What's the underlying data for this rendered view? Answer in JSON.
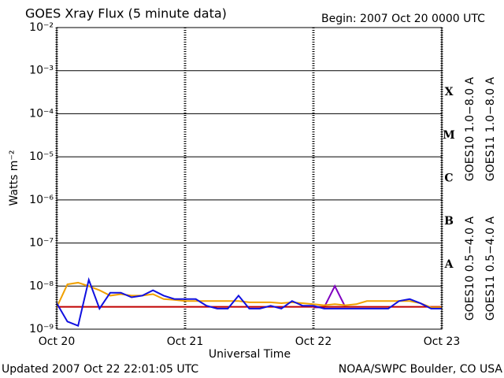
{
  "chart_data": {
    "type": "line",
    "title": "GOES Xray Flux (5 minute data)",
    "subtitle": "Begin:  2007 Oct 20 0000 UTC",
    "x_label": "Universal Time",
    "y_label": "Watts m⁻²",
    "footer_left": "Updated 2007 Oct 22 22:01:05 UTC",
    "footer_right": "NOAA/SWPC Boulder, CO USA",
    "log_scale": true,
    "grid": true,
    "xlim": [
      0,
      72
    ],
    "xticks": [
      {
        "value": 0,
        "label": "Oct 20"
      },
      {
        "value": 24,
        "label": "Oct 21"
      },
      {
        "value": 48,
        "label": "Oct 22"
      },
      {
        "value": 72,
        "label": "Oct 23"
      }
    ],
    "ylim": [
      1e-09,
      0.01
    ],
    "yticks": [
      {
        "value": 1e-09,
        "label": "10⁻⁹"
      },
      {
        "value": 1e-08,
        "label": "10⁻⁸"
      },
      {
        "value": 1e-07,
        "label": "10⁻⁷"
      },
      {
        "value": 1e-06,
        "label": "10⁻⁶"
      },
      {
        "value": 1e-05,
        "label": "10⁻⁵"
      },
      {
        "value": 0.0001,
        "label": "10⁻⁴"
      },
      {
        "value": 0.001,
        "label": "10⁻³"
      },
      {
        "value": 0.01,
        "label": "10⁻²"
      }
    ],
    "class_labels": [
      {
        "value": 1e-08,
        "label": "A"
      },
      {
        "value": 1e-07,
        "label": "B"
      },
      {
        "value": 1e-06,
        "label": "C"
      },
      {
        "value": 1e-05,
        "label": "M"
      },
      {
        "value": 0.0001,
        "label": "X"
      }
    ],
    "x": [
      0,
      2,
      4,
      6,
      8,
      10,
      12,
      14,
      16,
      18,
      20,
      22,
      24,
      26,
      28,
      30,
      32,
      34,
      36,
      38,
      40,
      42,
      44,
      46,
      48,
      50,
      52,
      54,
      56,
      58,
      60,
      62,
      64,
      66,
      68,
      70,
      72
    ],
    "series": [
      {
        "name": "GOES10 1.0−8.0 A",
        "color": "#8000c0",
        "values": [
          null,
          null,
          null,
          null,
          null,
          null,
          null,
          null,
          null,
          null,
          null,
          null,
          null,
          null,
          null,
          null,
          null,
          null,
          null,
          null,
          null,
          null,
          null,
          null,
          3.2e-09,
          3.2e-09,
          1e-08,
          3.2e-09,
          null,
          null,
          null,
          null,
          null,
          null,
          null,
          null,
          null
        ]
      },
      {
        "name": "GOES11 1.0−8.0 A",
        "color": "#c00000",
        "values": [
          3.3e-09,
          3.3e-09,
          3.3e-09,
          3.3e-09,
          3.3e-09,
          3.3e-09,
          3.3e-09,
          3.3e-09,
          3.3e-09,
          3.3e-09,
          3.3e-09,
          3.3e-09,
          3.3e-09,
          3.3e-09,
          3.3e-09,
          3.3e-09,
          3.3e-09,
          3.3e-09,
          3.3e-09,
          3.3e-09,
          3.3e-09,
          3.3e-09,
          3.3e-09,
          3.3e-09,
          3.3e-09,
          3.3e-09,
          3.3e-09,
          3.3e-09,
          3.3e-09,
          3.3e-09,
          3.3e-09,
          3.3e-09,
          3.3e-09,
          3.3e-09,
          3.3e-09,
          3.3e-09,
          3.3e-09
        ]
      },
      {
        "name": "GOES10 0.5−4.0 A",
        "color": "#f0a000",
        "values": [
          3.2e-09,
          1.1e-08,
          1.2e-08,
          1e-08,
          8e-09,
          6e-09,
          6.5e-09,
          6e-09,
          6e-09,
          6.5e-09,
          5e-09,
          4.8e-09,
          4.5e-09,
          4.5e-09,
          4.5e-09,
          4.5e-09,
          4.5e-09,
          4.5e-09,
          4.2e-09,
          4.2e-09,
          4.2e-09,
          4e-09,
          4.2e-09,
          4e-09,
          3.8e-09,
          3.6e-09,
          3.8e-09,
          3.6e-09,
          3.8e-09,
          4.5e-09,
          4.5e-09,
          4.5e-09,
          4.5e-09,
          4.5e-09,
          4e-09,
          3.2e-09,
          3.2e-09
        ]
      },
      {
        "name": "GOES11 0.5−4.0 A",
        "color": "#1010e0",
        "values": [
          4e-09,
          1.5e-09,
          1.2e-09,
          1.4e-08,
          3e-09,
          7e-09,
          7e-09,
          5.5e-09,
          6e-09,
          8e-09,
          6e-09,
          5e-09,
          5e-09,
          5e-09,
          3.5e-09,
          3e-09,
          3e-09,
          6e-09,
          3e-09,
          3e-09,
          3.5e-09,
          3e-09,
          4.5e-09,
          3.5e-09,
          3.5e-09,
          3e-09,
          3e-09,
          3e-09,
          3e-09,
          3e-09,
          3e-09,
          3e-09,
          4.5e-09,
          5e-09,
          4e-09,
          3e-09,
          3e-09
        ]
      }
    ]
  }
}
